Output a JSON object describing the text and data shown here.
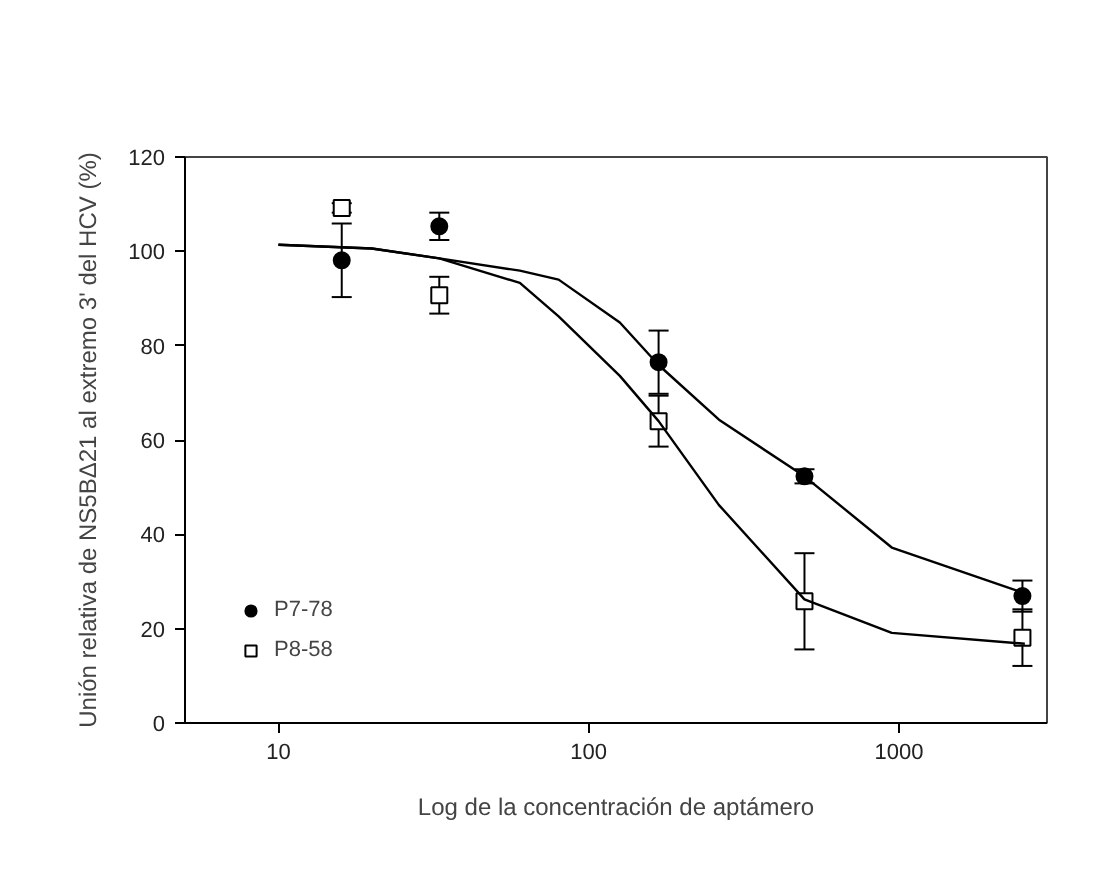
{
  "chart_data": {
    "type": "scatter",
    "xlabel": "Log de la concentración de aptámero",
    "ylabel": "Unión relativa de NS5BΔ21 al extremo 3' del HCV (%)",
    "log": "x",
    "xlim": [
      5,
      3000
    ],
    "xticks": [
      10,
      100,
      1000
    ],
    "ylim": [
      0,
      120
    ],
    "yticks": [
      0,
      20,
      40,
      60,
      80,
      100,
      120
    ],
    "grid": false,
    "legend": "bottom left",
    "series": [
      {
        "name": "P7-78",
        "marker": "circle",
        "color": "#000000",
        "x": [
          16,
          33,
          168,
          496,
          2500
        ],
        "values": [
          98.1,
          105.3,
          76.5,
          52.3,
          26.9
        ],
        "errors": [
          7.8,
          2.9,
          6.7,
          1.5,
          3.3
        ]
      },
      {
        "name": "P8-58",
        "marker": "square",
        "color": "#000000",
        "x": [
          16,
          33,
          168,
          496,
          2500
        ],
        "values": [
          109.2,
          90.7,
          64.0,
          25.8,
          18.1
        ],
        "errors": [
          1.0,
          3.9,
          5.4,
          10.2,
          6.0
        ]
      },
      {
        "type": "line",
        "marker": "none",
        "color": "#000000",
        "x": [
          10,
          20,
          33,
          60,
          80,
          126,
          168,
          263,
          496,
          948,
          2545
        ],
        "values": [
          101.4,
          100.6,
          98.5,
          95.9,
          94.0,
          84.9,
          75.9,
          64.3,
          52.3,
          37.2,
          27.5
        ]
      },
      {
        "type": "line",
        "marker": "none",
        "color": "#000000",
        "x": [
          10,
          20,
          33,
          60,
          80,
          126,
          168,
          263,
          496,
          948,
          2545
        ],
        "values": [
          101.4,
          100.6,
          98.5,
          93.3,
          86.2,
          73.6,
          64.0,
          46.2,
          26.2,
          19.1,
          16.8
        ]
      }
    ]
  }
}
